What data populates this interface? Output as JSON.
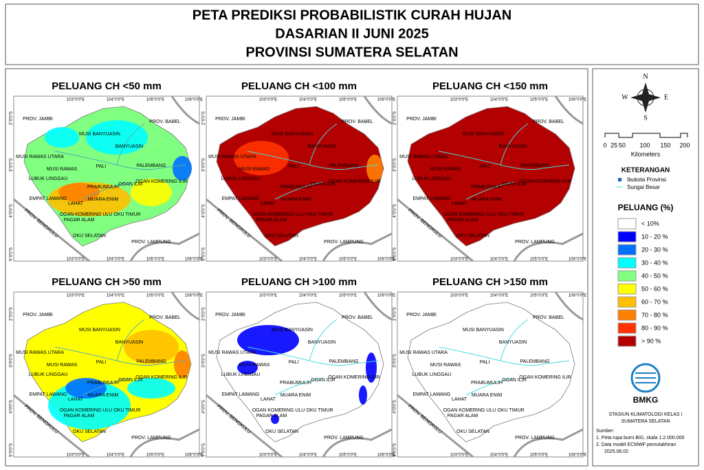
{
  "header": {
    "title_lines": [
      "PETA PREDIKSI PROBABILISTIK CURAH HUJAN",
      "DASARIAN II JUNI 2025",
      "PROVINSI SUMATERA SELATAN"
    ]
  },
  "maps": [
    {
      "title": "PELUANG CH <50 mm",
      "color": "#80ff80"
    },
    {
      "title": "PELUANG CH <100 mm",
      "color": "#b30000"
    },
    {
      "title": "PELUANG CH <150 mm",
      "color": "#b30000"
    },
    {
      "title": "PELUANG CH >50 mm",
      "color": "#ffff00"
    },
    {
      "title": "PELUANG CH >100 mm",
      "color": "#ffffff"
    },
    {
      "title": "PELUANG CH >150 mm",
      "color": "#ffffff"
    }
  ],
  "map_labels": {
    "places": [
      "MUSI BANYUASIN",
      "BANYUASIN",
      "MUSI RAWAS UTARA",
      "PALEMBANG",
      "MUSI RAWAS",
      "PALI",
      "LUBUK LINGGAU",
      "OGAN KOMERING ILIR",
      "PRABUMULIH",
      "OGAN ILIR",
      "EMPAT LAWANG",
      "LAHAT",
      "MUARA ENIM",
      "OGAN KOMERING ULU",
      "OKU TIMUR",
      "PAGAR ALAM",
      "OKU SELATAN"
    ],
    "neighbors": [
      "PROV. JAMBI",
      "PROV. BABEL",
      "PROV. BENGKULU",
      "PROV. LAMPUNG"
    ],
    "lon_ticks": [
      "103°0'0\"E",
      "104°0'0\"E",
      "105°0'0\"E",
      "106°0'0\"E"
    ],
    "lat_ticks": [
      "2°0'0\"S",
      "3°0'0\"S",
      "4°0'0\"S",
      "5°0'0\"S"
    ]
  },
  "compass": [
    "N",
    "E",
    "S",
    "W"
  ],
  "scale": {
    "ticks": [
      "0",
      "25",
      "50",
      "100",
      "150",
      "200"
    ],
    "unit": "Kilometers"
  },
  "keterangan": {
    "title": "KETERANGAN",
    "items": [
      "Ibukota Provinsi",
      "Sungai Besar"
    ]
  },
  "legend": {
    "title": "PELUANG (%)",
    "items": [
      {
        "label": "< 10%",
        "color": "#ffffff"
      },
      {
        "label": "10 - 20 %",
        "color": "#0000ff"
      },
      {
        "label": "20 - 30 %",
        "color": "#0070ff"
      },
      {
        "label": "30 - 40 %",
        "color": "#00ffff"
      },
      {
        "label": "40 - 50 %",
        "color": "#80ff80"
      },
      {
        "label": "50 - 60 %",
        "color": "#ffff00"
      },
      {
        "label": "60 - 70 %",
        "color": "#ffc000"
      },
      {
        "label": "70 - 80 %",
        "color": "#ff7f00"
      },
      {
        "label": "80 - 90 %",
        "color": "#ff3300"
      },
      {
        "label": "> 90 %",
        "color": "#b30000"
      }
    ]
  },
  "org": "BMKG",
  "station": [
    "STASIUN KLIMATOLOGI KELAS I",
    "SUMATERA SELATAN"
  ],
  "source": {
    "title": "Sumber:",
    "lines": [
      "1. Peta rupa bumi BIG, skala 1:2.000.000",
      "2. Data model ECMWF pemutakhiran",
      "2025.06.02"
    ]
  }
}
